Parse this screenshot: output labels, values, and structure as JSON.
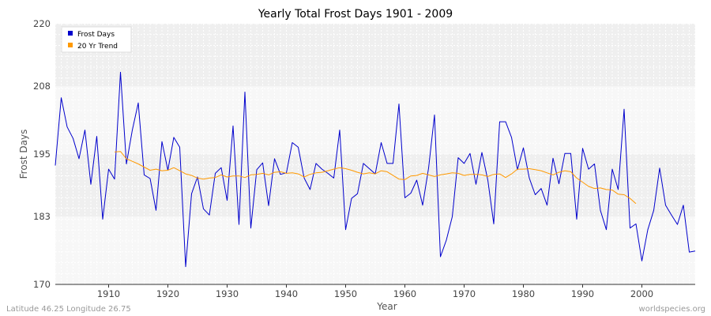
{
  "chart_data": {
    "type": "line",
    "title": "Yearly Total Frost Days 1901 - 2009",
    "xlabel": "Year",
    "ylabel": "Frost Days",
    "xlim": [
      1901,
      2009
    ],
    "ylim": [
      170,
      220
    ],
    "x_ticks": [
      1910,
      1920,
      1930,
      1940,
      1950,
      1960,
      1970,
      1980,
      1990,
      2000
    ],
    "y_ticks": [
      170,
      183,
      195,
      208,
      220
    ],
    "grid": true,
    "legend_position": "top-left",
    "series": [
      {
        "name": "Frost Days",
        "color": "#0000cc",
        "x": [
          1901,
          1902,
          1903,
          1904,
          1905,
          1906,
          1907,
          1908,
          1909,
          1910,
          1911,
          1912,
          1913,
          1914,
          1915,
          1916,
          1917,
          1918,
          1919,
          1920,
          1921,
          1922,
          1923,
          1924,
          1925,
          1926,
          1927,
          1928,
          1929,
          1930,
          1931,
          1932,
          1933,
          1934,
          1935,
          1936,
          1937,
          1938,
          1939,
          1940,
          1941,
          1942,
          1943,
          1944,
          1945,
          1946,
          1947,
          1948,
          1949,
          1950,
          1951,
          1952,
          1953,
          1954,
          1955,
          1956,
          1957,
          1958,
          1959,
          1960,
          1961,
          1962,
          1963,
          1964,
          1965,
          1966,
          1967,
          1968,
          1969,
          1970,
          1971,
          1972,
          1973,
          1974,
          1975,
          1976,
          1977,
          1978,
          1979,
          1980,
          1981,
          1982,
          1983,
          1984,
          1985,
          1986,
          1987,
          1988,
          1989,
          1990,
          1991,
          1992,
          1993,
          1994,
          1995,
          1996,
          1997,
          1998,
          1999,
          2000,
          2001,
          2002,
          2003,
          2004,
          2005,
          2006,
          2007,
          2008,
          2009
        ],
        "values": [
          192.8,
          205.8,
          200.2,
          198.0,
          194.1,
          199.6,
          189.2,
          198.4,
          182.5,
          192.1,
          190.2,
          210.7,
          193.1,
          199.6,
          204.8,
          191.0,
          190.3,
          184.2,
          197.4,
          191.9,
          198.2,
          196.3,
          173.4,
          187.4,
          190.6,
          184.5,
          183.3,
          191.3,
          192.4,
          186.1,
          200.4,
          181.5,
          206.9,
          180.8,
          192.0,
          193.3,
          185.1,
          194.1,
          191.1,
          191.4,
          197.2,
          196.3,
          190.4,
          188.2,
          193.2,
          192.1,
          191.3,
          190.4,
          199.6,
          180.5,
          186.5,
          187.4,
          193.2,
          192.2,
          191.2,
          197.2,
          193.2,
          193.2,
          204.6,
          186.6,
          187.5,
          190.0,
          185.2,
          192.3,
          202.5,
          175.3,
          178.5,
          183.0,
          194.3,
          193.2,
          195.1,
          189.2,
          195.3,
          190.0,
          181.6,
          201.2,
          201.2,
          198.2,
          192.0,
          196.2,
          190.4,
          187.2,
          188.4,
          185.2,
          194.2,
          189.3,
          195.1,
          195.1,
          182.5,
          196.1,
          192.1,
          193.1,
          184.2,
          180.5,
          192.1,
          188.2,
          203.6,
          180.8,
          181.6,
          174.5,
          180.5,
          184.2,
          192.3,
          185.2,
          183.3,
          181.5,
          185.2,
          176.2,
          176.4
        ]
      },
      {
        "name": "20 Yr Trend",
        "color": "#ff9900",
        "x": [
          1911,
          1912,
          1913,
          1914,
          1915,
          1916,
          1917,
          1918,
          1919,
          1920,
          1921,
          1922,
          1923,
          1924,
          1925,
          1926,
          1927,
          1928,
          1929,
          1930,
          1931,
          1932,
          1933,
          1934,
          1935,
          1936,
          1937,
          1938,
          1939,
          1940,
          1941,
          1942,
          1943,
          1944,
          1945,
          1946,
          1947,
          1948,
          1949,
          1950,
          1951,
          1952,
          1953,
          1954,
          1955,
          1956,
          1957,
          1958,
          1959,
          1960,
          1961,
          1962,
          1963,
          1964,
          1965,
          1966,
          1967,
          1968,
          1969,
          1970,
          1971,
          1972,
          1973,
          1974,
          1975,
          1976,
          1977,
          1978,
          1979,
          1980,
          1981,
          1982,
          1983,
          1984,
          1985,
          1986,
          1987,
          1988,
          1989,
          1990,
          1991,
          1992,
          1993,
          1994,
          1995,
          1996,
          1997,
          1998,
          1999
        ],
        "values": [
          195.4,
          195.5,
          194.1,
          193.6,
          193.1,
          192.5,
          191.9,
          192.1,
          191.8,
          191.9,
          192.4,
          191.8,
          191.2,
          190.9,
          190.4,
          190.2,
          190.4,
          190.5,
          191.0,
          190.6,
          190.8,
          190.8,
          190.5,
          191.0,
          191.1,
          191.3,
          191.0,
          191.5,
          191.6,
          191.3,
          191.4,
          191.2,
          190.6,
          191.1,
          191.4,
          191.5,
          191.8,
          192.1,
          192.4,
          192.2,
          191.9,
          191.5,
          191.2,
          191.4,
          191.2,
          191.8,
          191.6,
          190.9,
          190.2,
          190.1,
          190.8,
          190.9,
          191.3,
          191.0,
          190.7,
          191.0,
          191.2,
          191.4,
          191.3,
          190.9,
          191.1,
          191.1,
          191.0,
          190.7,
          191.1,
          191.2,
          190.5,
          191.2,
          192.1,
          192.1,
          192.2,
          192.0,
          191.8,
          191.4,
          191.0,
          191.5,
          191.8,
          191.6,
          190.4,
          189.6,
          188.8,
          188.4,
          188.5,
          188.2,
          188.1,
          187.3,
          187.2,
          186.5,
          185.5
        ]
      }
    ],
    "footer_left": "Latitude 46.25 Longitude 26.75",
    "footer_right": "worldspecies.org"
  }
}
